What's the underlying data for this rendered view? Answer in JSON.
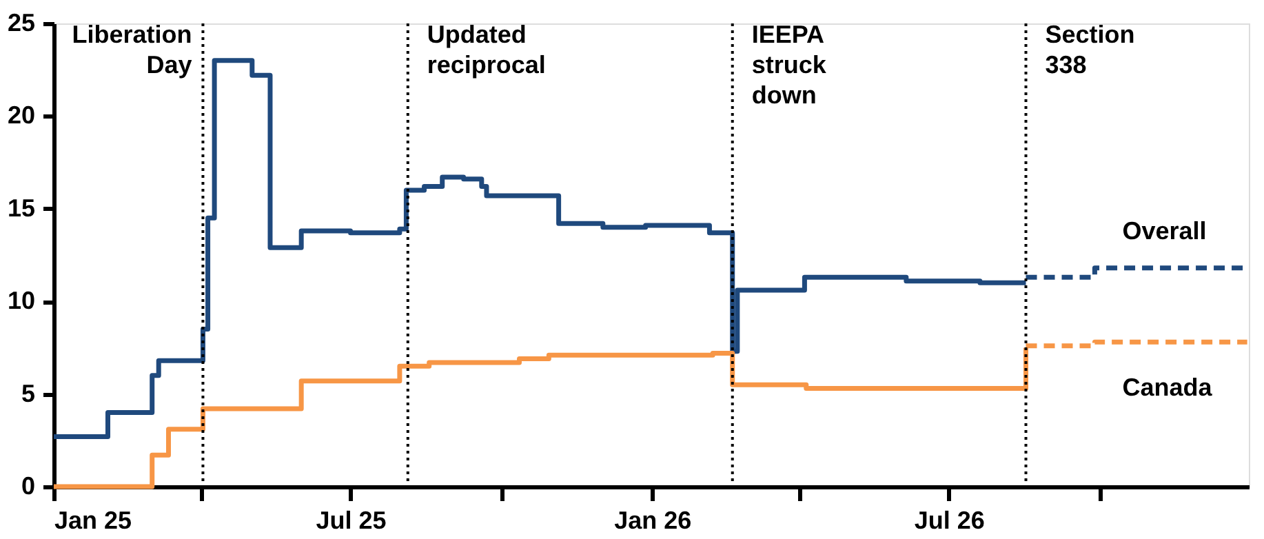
{
  "chart_data": {
    "type": "step",
    "xlim": [
      "2025-01-01",
      "2026-12-31"
    ],
    "xticks": [
      {
        "value": "2025-01-01",
        "label": "Jan 25"
      },
      {
        "value": "2025-04-01",
        "label": null
      },
      {
        "value": "2025-07-01",
        "label": "Jul 25"
      },
      {
        "value": "2025-10-01",
        "label": null
      },
      {
        "value": "2026-01-01",
        "label": "Jan 26"
      },
      {
        "value": "2026-04-01",
        "label": null
      },
      {
        "value": "2026-07-01",
        "label": "Jul 26"
      },
      {
        "value": "2026-10-01",
        "label": null
      }
    ],
    "ylim": [
      0,
      25
    ],
    "yticks": [
      0,
      5,
      10,
      15,
      20,
      25
    ],
    "grid": false,
    "ref_lines": [
      {
        "axis": "x",
        "value": "2025-04-02",
        "label": "Liberation\nDay",
        "line_style": "dotted",
        "color": "#000000"
      },
      {
        "axis": "x",
        "value": "2025-08-05",
        "label": "Updated\nreciprocal",
        "line_style": "dotted",
        "color": "#000000"
      },
      {
        "axis": "x",
        "value": "2026-02-19",
        "label": "IEEPA\nstruck\ndown",
        "line_style": "dotted",
        "color": "#000000"
      },
      {
        "axis": "x",
        "value": "2026-08-17",
        "label": "Section\n338",
        "line_style": "dotted",
        "color": "#000000"
      }
    ],
    "series": [
      {
        "color": "#1f497d",
        "line_style": "solid",
        "x": [
          "2025-01-01",
          "2025-02-03",
          "2025-03-02",
          "2025-03-06",
          "2025-04-02",
          "2025-04-05",
          "2025-04-09",
          "2025-05-02",
          "2025-05-13",
          "2025-06-01",
          "2025-07-01",
          "2025-07-31",
          "2025-08-04",
          "2025-08-15",
          "2025-08-26",
          "2025-09-08",
          "2025-09-19",
          "2025-09-22",
          "2025-11-05",
          "2025-12-02",
          "2025-12-28",
          "2026-02-05",
          "2026-02-19",
          "2026-02-22",
          "2026-04-04",
          "2026-06-05",
          "2026-07-20",
          "2026-08-17"
        ],
        "values": [
          2.7,
          4.0,
          6.0,
          6.8,
          8.5,
          14.5,
          23.0,
          22.2,
          12.9,
          13.8,
          13.7,
          13.9,
          16.0,
          16.2,
          16.7,
          16.6,
          16.2,
          15.7,
          14.2,
          14.0,
          14.1,
          13.7,
          7.3,
          10.6,
          11.3,
          11.1,
          11.0,
          11.0
        ]
      },
      {
        "name": "Overall",
        "color": "#1f497d",
        "line_style": "dashed",
        "x": [
          "2026-08-17",
          "2026-09-25",
          "2026-09-28",
          "2026-12-30"
        ],
        "values": [
          11.3,
          11.3,
          11.8,
          11.8
        ]
      },
      {
        "color": "#f79646",
        "line_style": "solid",
        "x": [
          "2025-01-01",
          "2025-03-02",
          "2025-03-12",
          "2025-04-02",
          "2025-06-01",
          "2025-07-31",
          "2025-08-18",
          "2025-10-12",
          "2025-10-30",
          "2026-02-07",
          "2026-02-19",
          "2026-04-05",
          "2026-08-17"
        ],
        "values": [
          0.0,
          1.7,
          3.1,
          4.2,
          5.7,
          6.5,
          6.7,
          6.9,
          7.1,
          7.2,
          5.5,
          5.3,
          7.5
        ]
      },
      {
        "name": "Canada",
        "color": "#f79646",
        "line_style": "dashed",
        "x": [
          "2026-08-17",
          "2026-09-25",
          "2026-09-28",
          "2026-12-30"
        ],
        "values": [
          7.6,
          7.6,
          7.8,
          7.8
        ]
      }
    ]
  }
}
